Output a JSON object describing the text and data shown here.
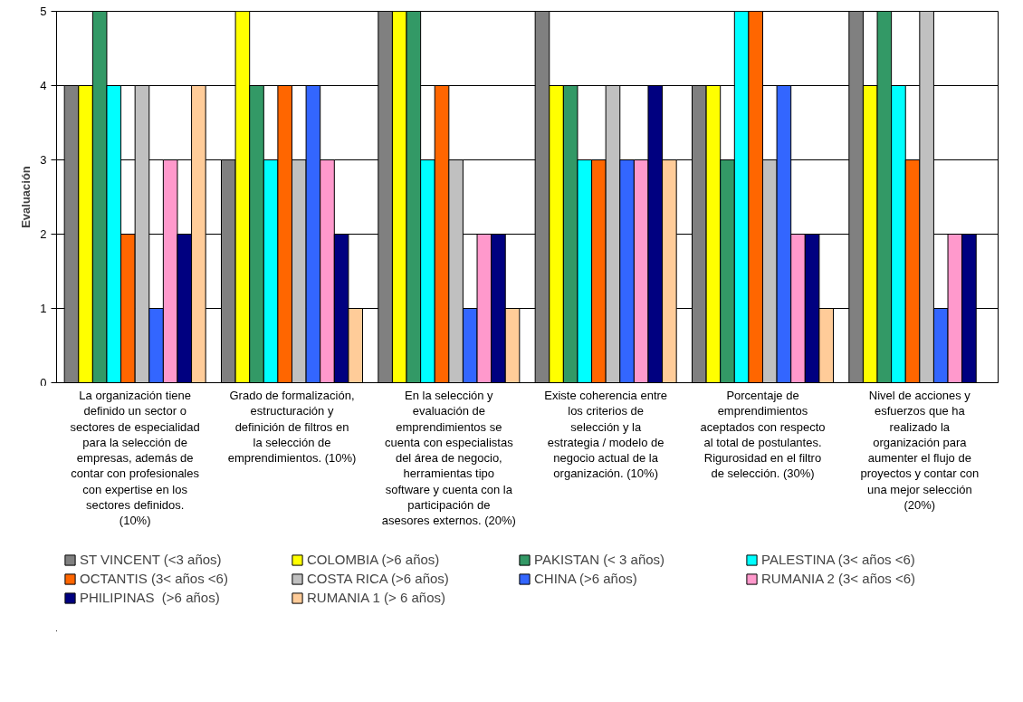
{
  "chart_data": {
    "type": "bar",
    "ylabel": "Evaluación",
    "categories": [
      "La organización tiene definido un sector o sectores de especialidad para la selección de empresas, además de contar con profesionales con expertise en los sectores definidos. (10%)",
      "Grado de formalización, estructuración y definición de filtros en la selección de emprendimientos. (10%)",
      "En la selección y evaluación de emprendimientos se cuenta con especialistas del área de negocio, herramientas tipo software y cuenta con la participación de asesores externos. (20%)",
      "Existe coherencia entre los criterios de selección y la estrategia / modelo de negocio actual de la organización. (10%)",
      "Porcentaje de emprendimientos aceptados con respecto al total de postulantes. Rigurosidad en el filtro de selección. (30%)",
      "Nivel de acciones y esfuerzos que ha realizado la organización para aumenter el flujo de proyectos y contar con una mejor selección (20%)"
    ],
    "series": [
      {
        "name": "ST VINCENT (<3 años)",
        "color": "#808080",
        "values": [
          4,
          3,
          5,
          5,
          4,
          5
        ]
      },
      {
        "name": "COLOMBIA (>6 años)",
        "color": "#ffff00",
        "values": [
          4,
          5,
          5,
          4,
          4,
          4
        ]
      },
      {
        "name": "PAKISTAN (< 3 años)",
        "color": "#339966",
        "values": [
          5,
          4,
          5,
          4,
          3,
          5
        ]
      },
      {
        "name": "PALESTINA (3< años <6)",
        "color": "#00ffff",
        "values": [
          4,
          3,
          3,
          3,
          5,
          4
        ]
      },
      {
        "name": "OCTANTIS (3< años <6)",
        "color": "#ff6600",
        "values": [
          2,
          4,
          4,
          3,
          5,
          3
        ]
      },
      {
        "name": "COSTA RICA (>6 años)",
        "color": "#c0c0c0",
        "values": [
          4,
          3,
          3,
          4,
          3,
          5
        ]
      },
      {
        "name": "CHINA (>6 años)",
        "color": "#3366ff",
        "values": [
          1,
          4,
          1,
          3,
          4,
          1
        ]
      },
      {
        "name": "RUMANIA 2 (3< años <6)",
        "color": "#ff99cc",
        "values": [
          3,
          3,
          2,
          3,
          2,
          2
        ]
      },
      {
        "name": "PHILIPINAS  (>6 años)",
        "color": "#000080",
        "values": [
          2,
          2,
          2,
          4,
          2,
          2
        ]
      },
      {
        "name": "RUMANIA 1 (> 6 años)",
        "color": "#ffcc99",
        "values": [
          4,
          1,
          1,
          3,
          1,
          null
        ]
      }
    ],
    "ylim": [
      0,
      5
    ],
    "yticks": [
      0,
      1,
      2,
      3,
      4,
      5
    ],
    "grid": "y",
    "legend": "bottom"
  }
}
